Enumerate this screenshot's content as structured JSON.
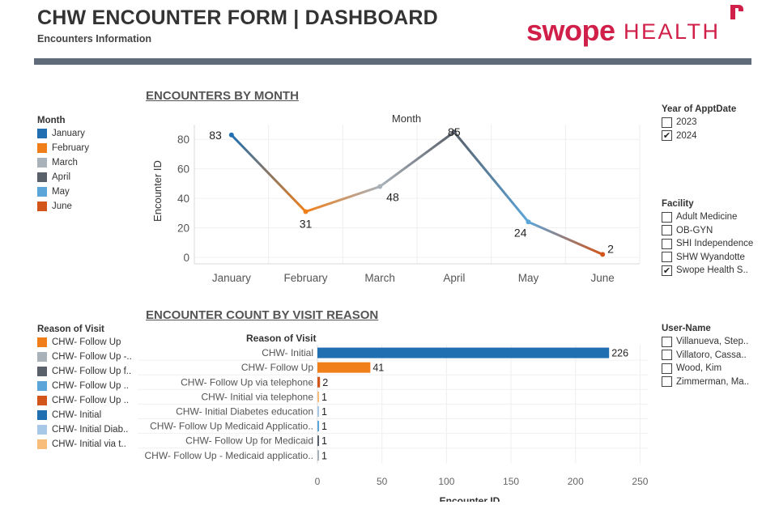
{
  "header": {
    "title": "CHW ENCOUNTER FORM | DASHBOARD",
    "subtitle": "Encounters Information",
    "logo_swope": "swope",
    "logo_health": "HEALTH"
  },
  "colors": {
    "divider": "#5f6b78",
    "brand": "#d0204a",
    "January": "#1f6fb1",
    "February": "#f07f1a",
    "March": "#a9b1b9",
    "April": "#59606a",
    "May": "#5ba5d9",
    "June": "#d2551a"
  },
  "month_legend": {
    "title": "Month",
    "items": [
      {
        "label": "January",
        "color": "#1f6fb1"
      },
      {
        "label": "February",
        "color": "#f07f1a"
      },
      {
        "label": "March",
        "color": "#a9b1b9"
      },
      {
        "label": "April",
        "color": "#59606a"
      },
      {
        "label": "May",
        "color": "#5ba5d9"
      },
      {
        "label": "June",
        "color": "#d2551a"
      }
    ]
  },
  "reason_legend": {
    "title": "Reason of Visit",
    "items": [
      {
        "label": "CHW- Follow Up",
        "color": "#f07f1a"
      },
      {
        "label": "CHW- Follow Up -..",
        "color": "#a9b1b9"
      },
      {
        "label": "CHW- Follow Up f..",
        "color": "#59606a"
      },
      {
        "label": "CHW- Follow Up ..",
        "color": "#5ba5d9"
      },
      {
        "label": "CHW- Follow Up ..",
        "color": "#d2551a"
      },
      {
        "label": "CHW- Initial",
        "color": "#1f6fb1"
      },
      {
        "label": "CHW- Initial Diab..",
        "color": "#a7c8e6"
      },
      {
        "label": "CHW- Initial via t..",
        "color": "#f8bd7a"
      }
    ]
  },
  "filters": {
    "year": {
      "title": "Year of ApptDate",
      "options": [
        {
          "label": "2023",
          "checked": false
        },
        {
          "label": "2024",
          "checked": true
        }
      ]
    },
    "facility": {
      "title": "Facility",
      "options": [
        {
          "label": "Adult Medicine",
          "checked": false
        },
        {
          "label": "OB-GYN",
          "checked": false
        },
        {
          "label": "SHI Independence",
          "checked": false
        },
        {
          "label": "SHW Wyandotte",
          "checked": false
        },
        {
          "label": "Swope Health S..",
          "checked": true
        }
      ]
    },
    "user": {
      "title": "User-Name",
      "options": [
        {
          "label": "Villanueva, Step..",
          "checked": false
        },
        {
          "label": "Villatoro, Cassa..",
          "checked": false
        },
        {
          "label": "Wood, Kim",
          "checked": false
        },
        {
          "label": "Zimmerman, Ma..",
          "checked": false
        }
      ]
    }
  },
  "chart_data": [
    {
      "type": "line",
      "section_title": "ENCOUNTERS BY MONTH",
      "title": "Month",
      "xlabel": "",
      "ylabel": "Encounter ID",
      "categories": [
        "January",
        "February",
        "March",
        "April",
        "May",
        "June"
      ],
      "values": [
        83,
        31,
        48,
        85,
        24,
        2
      ],
      "yticks": [
        0,
        20,
        40,
        60,
        80
      ],
      "ylim": [
        0,
        90
      ],
      "grid": true
    },
    {
      "type": "bar",
      "orientation": "horizontal",
      "section_title": "ENCOUNTER COUNT BY VISIT REASON",
      "title": "",
      "category_header": "Reason of Visit",
      "xlabel": "Encounter ID",
      "ylabel": "",
      "categories": [
        "CHW- Initial",
        "CHW- Follow Up",
        "CHW- Follow Up via telephone",
        "CHW- Initial via telephone",
        "CHW- Initial Diabetes education",
        "CHW- Follow Up Medicaid Applicatio..",
        "CHW- Follow Up for Medicaid",
        "CHW- Follow Up - Medicaid applicatio.."
      ],
      "values": [
        226,
        41,
        2,
        1,
        1,
        1,
        1,
        1
      ],
      "colors": [
        "#1f6fb1",
        "#f07f1a",
        "#d2551a",
        "#f8bd7a",
        "#a7c8e6",
        "#5ba5d9",
        "#59606a",
        "#a9b1b9"
      ],
      "xticks": [
        0,
        50,
        100,
        150,
        200,
        250
      ],
      "xlim": [
        0,
        250
      ],
      "grid": true
    }
  ]
}
